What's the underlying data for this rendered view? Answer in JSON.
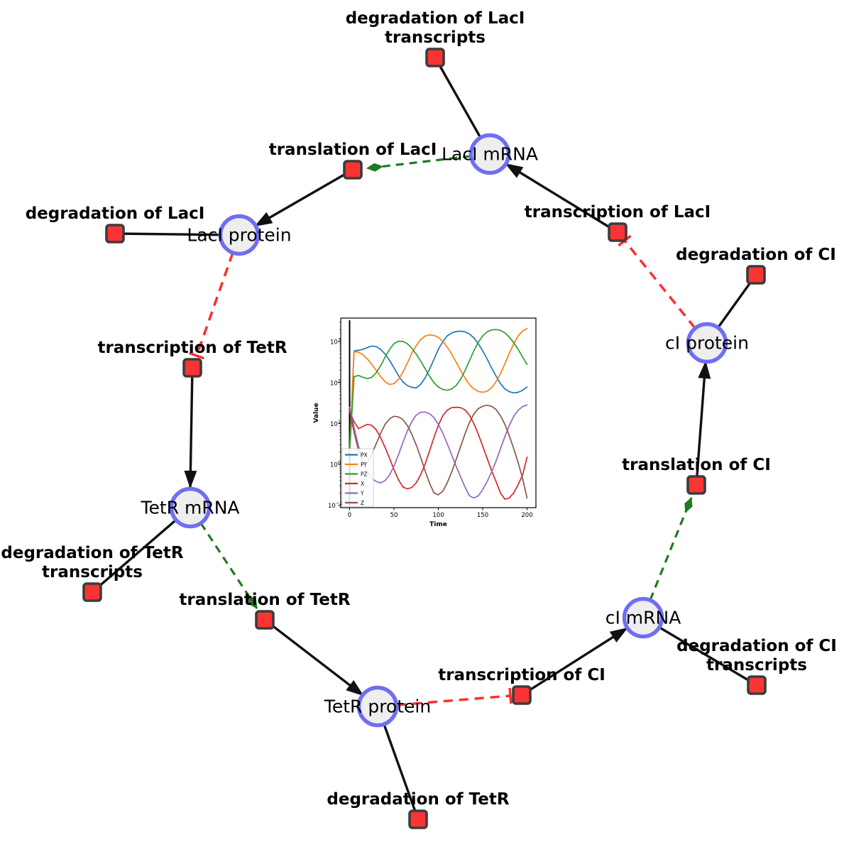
{
  "colors": {
    "species_fill": "#eeeeef",
    "species_stroke": "#6e6ef5",
    "reaction_fill": "#fa3434",
    "reaction_stroke": "#3c3c3c",
    "edge_black": "#111111",
    "edge_modifier_green": "#1f7a1f",
    "edge_inhibition_red": "#fb2e2e"
  },
  "diagram": {
    "species": [
      {
        "id": "laci-mrna",
        "label": "LacI mRNA"
      },
      {
        "id": "laci-protein",
        "label": "LacI protein"
      },
      {
        "id": "tetr-mrna",
        "label": "TetR mRNA"
      },
      {
        "id": "tetr-protein",
        "label": "TetR protein"
      },
      {
        "id": "ci-mrna",
        "label": "cI mRNA"
      },
      {
        "id": "ci-protein",
        "label": "cI protein"
      }
    ],
    "reactions": [
      {
        "id": "degradation-of-laci-transcripts",
        "lines": [
          "degradation of LacI",
          "transcripts"
        ]
      },
      {
        "id": "translation-of-laci",
        "lines": [
          "translation of LacI"
        ]
      },
      {
        "id": "degradation-of-laci",
        "lines": [
          "degradation of LacI"
        ]
      },
      {
        "id": "transcription-of-laci",
        "lines": [
          "transcription of LacI"
        ]
      },
      {
        "id": "degradation-of-ci",
        "lines": [
          "degradation of CI"
        ]
      },
      {
        "id": "transcription-of-tetr",
        "lines": [
          "transcription of TetR"
        ]
      },
      {
        "id": "degradation-of-tetr-transcripts",
        "lines": [
          "degradation of TetR",
          "transcripts"
        ]
      },
      {
        "id": "translation-of-tetr",
        "lines": [
          "translation of TetR"
        ]
      },
      {
        "id": "degradation-of-tetr",
        "lines": [
          "degradation of TetR"
        ]
      },
      {
        "id": "transcription-of-ci",
        "lines": [
          "transcription of CI"
        ]
      },
      {
        "id": "degradation-of-ci-transcripts",
        "lines": [
          "degradation of CI",
          "transcripts"
        ]
      },
      {
        "id": "translation-of-ci",
        "lines": [
          "translation of CI"
        ]
      }
    ]
  },
  "chart_data": {
    "type": "line",
    "title": "",
    "xlabel": "Time",
    "ylabel": "Value",
    "yscale": "log",
    "xlim": [
      -10,
      210
    ],
    "ylog_lim": [
      -1.06,
      3.58
    ],
    "x_ticks": [
      "0",
      "50",
      "100",
      "150",
      "200"
    ],
    "y_ticks": [
      {
        "base": "10",
        "exp": "−1"
      },
      {
        "base": "10",
        "exp": "0"
      },
      {
        "base": "10",
        "exp": "1"
      },
      {
        "base": "10",
        "exp": "2"
      },
      {
        "base": "10",
        "exp": "3"
      }
    ],
    "legend_position": "lower left",
    "vline_x": 0,
    "x": [
      0,
      5,
      10,
      15,
      20,
      25,
      30,
      35,
      40,
      45,
      50,
      55,
      60,
      65,
      70,
      75,
      80,
      85,
      90,
      95,
      100,
      105,
      110,
      115,
      120,
      125,
      130,
      135,
      140,
      145,
      150,
      155,
      160,
      165,
      170,
      175,
      180,
      185,
      190,
      195,
      200
    ],
    "series": [
      {
        "name": "PX",
        "color": "#1f77b4",
        "values": [
          2,
          600,
          620,
          650,
          720,
          790,
          760,
          650,
          500,
          350,
          230,
          150,
          105,
          85,
          77,
          74,
          90,
          130,
          210,
          370,
          650,
          1000,
          1400,
          1650,
          1780,
          1820,
          1750,
          1550,
          1250,
          900,
          600,
          380,
          230,
          145,
          95,
          70,
          60,
          56,
          58,
          65,
          78
        ]
      },
      {
        "name": "PY",
        "color": "#ff7f0e",
        "values": [
          2,
          580,
          560,
          480,
          380,
          280,
          200,
          140,
          105,
          90,
          95,
          120,
          180,
          300,
          520,
          800,
          1130,
          1380,
          1480,
          1440,
          1280,
          1020,
          740,
          500,
          320,
          200,
          130,
          90,
          70,
          61,
          58,
          62,
          75,
          105,
          165,
          290,
          520,
          900,
          1400,
          1850,
          2100
        ]
      },
      {
        "name": "PZ",
        "color": "#2ca02c",
        "values": [
          2,
          140,
          150,
          135,
          125,
          135,
          175,
          260,
          420,
          650,
          900,
          1030,
          1020,
          900,
          700,
          500,
          340,
          220,
          145,
          100,
          78,
          68,
          65,
          70,
          85,
          120,
          195,
          340,
          600,
          980,
          1400,
          1750,
          1950,
          2000,
          1900,
          1650,
          1300,
          950,
          650,
          420,
          280
        ]
      },
      {
        "name": "X",
        "color": "#d62728",
        "values": [
          20,
          11,
          7.5,
          8.5,
          9.5,
          9.0,
          7.0,
          4.5,
          2.6,
          1.4,
          0.75,
          0.42,
          0.28,
          0.25,
          0.27,
          0.35,
          0.55,
          1.0,
          2.1,
          4.5,
          9,
          15.5,
          21,
          24.5,
          25,
          24.5,
          21.5,
          16,
          10,
          5.5,
          2.8,
          1.4,
          0.7,
          0.38,
          0.2,
          0.14,
          0.15,
          0.2,
          0.32,
          0.55,
          1.5
        ]
      },
      {
        "name": "Y",
        "color": "#9467bd",
        "values": [
          25,
          8,
          2.8,
          1.2,
          0.65,
          0.45,
          0.38,
          0.35,
          0.4,
          0.55,
          0.9,
          1.7,
          3.4,
          6.5,
          11,
          16,
          18.8,
          19,
          17.5,
          14,
          9.5,
          5.8,
          3.2,
          1.7,
          0.9,
          0.5,
          0.28,
          0.17,
          0.15,
          0.17,
          0.24,
          0.38,
          0.65,
          1.2,
          2.4,
          4.8,
          9,
          15,
          21,
          26,
          28.5
        ]
      },
      {
        "name": "Z",
        "color": "#8c564b",
        "values": [
          22,
          6,
          2.2,
          1.2,
          1.1,
          1.8,
          3.2,
          5.8,
          9.5,
          13,
          15,
          14.5,
          12.5,
          9,
          5.5,
          3.0,
          1.5,
          0.7,
          0.35,
          0.2,
          0.18,
          0.22,
          0.35,
          0.65,
          1.3,
          2.7,
          5.5,
          10.5,
          17,
          23,
          26.5,
          28,
          26.5,
          22,
          15.5,
          9.5,
          5.0,
          2.4,
          1.1,
          0.45,
          0.15
        ]
      }
    ]
  }
}
